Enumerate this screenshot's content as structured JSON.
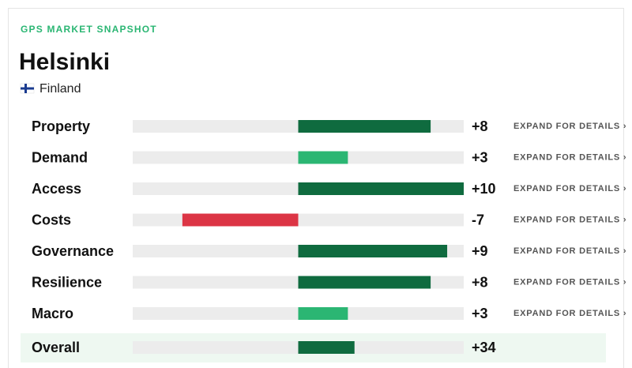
{
  "chart_data": {
    "type": "bar",
    "subtitle": "GPS MARKET SNAPSHOT",
    "title": "Helsinki",
    "country": "Finland",
    "categories": [
      "Property",
      "Demand",
      "Access",
      "Costs",
      "Governance",
      "Resilience",
      "Macro"
    ],
    "values": [
      8,
      3,
      10,
      -7,
      9,
      8,
      3
    ],
    "value_labels": [
      "+8",
      "+3",
      "+10",
      "-7",
      "+9",
      "+8",
      "+3"
    ],
    "colors": [
      "#0f6b3f",
      "#2bb673",
      "#0f6b3f",
      "#dc3545",
      "#0f6b3f",
      "#0f6b3f",
      "#2bb673"
    ],
    "xlim": [
      -10,
      10
    ],
    "action_label": "EXPAND FOR DETAILS ›",
    "overall": {
      "label": "Overall",
      "value": 34,
      "value_label": "+34",
      "color": "#0f6b3f",
      "xlim": [
        -100,
        100
      ]
    }
  }
}
